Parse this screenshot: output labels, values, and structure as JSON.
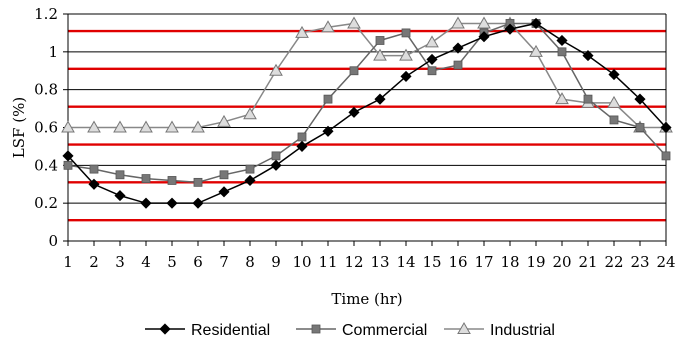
{
  "chart_data": {
    "type": "line",
    "xlabel": "Time (hr)",
    "ylabel": "LSF (%)",
    "x": [
      1,
      2,
      3,
      4,
      5,
      6,
      7,
      8,
      9,
      10,
      11,
      12,
      13,
      14,
      15,
      16,
      17,
      18,
      19,
      20,
      21,
      22,
      23,
      24
    ],
    "x_ticks": [
      "1",
      "2",
      "3",
      "4",
      "5",
      "6",
      "7",
      "8",
      "9",
      "10",
      "11",
      "12",
      "13",
      "14",
      "15",
      "16",
      "17",
      "18",
      "19",
      "20",
      "21",
      "22",
      "23",
      "24"
    ],
    "xlim": [
      1,
      24
    ],
    "ylim": [
      0,
      1.2
    ],
    "y_ticks": [
      "0",
      "0.2",
      "0.4",
      "0.6",
      "0.8",
      "1",
      "1.2"
    ],
    "y_tick_values": [
      0,
      0.2,
      0.4,
      0.6,
      0.8,
      1.0,
      1.2
    ],
    "grid": true,
    "red_lines": [
      0.11,
      0.31,
      0.51,
      0.71,
      0.91,
      1.11
    ],
    "legend_position": "bottom",
    "series": [
      {
        "name": "Residential",
        "marker": "diamond",
        "color": "#000000",
        "values": [
          0.45,
          0.3,
          0.24,
          0.2,
          0.2,
          0.2,
          0.26,
          0.32,
          0.4,
          0.5,
          0.58,
          0.68,
          0.75,
          0.87,
          0.96,
          1.02,
          1.08,
          1.12,
          1.15,
          1.06,
          0.98,
          0.88,
          0.75,
          0.6
        ]
      },
      {
        "name": "Commercial",
        "marker": "square",
        "color": "#666666",
        "values": [
          0.4,
          0.38,
          0.35,
          0.33,
          0.32,
          0.31,
          0.35,
          0.38,
          0.45,
          0.55,
          0.75,
          0.9,
          1.06,
          1.1,
          0.9,
          0.93,
          1.1,
          1.15,
          1.15,
          1.0,
          0.75,
          0.64,
          0.6,
          0.45
        ]
      },
      {
        "name": "Industrial",
        "marker": "triangle",
        "color": "#888888",
        "values": [
          0.6,
          0.6,
          0.6,
          0.6,
          0.6,
          0.6,
          0.63,
          0.67,
          0.9,
          1.1,
          1.13,
          1.15,
          0.98,
          0.98,
          1.05,
          1.15,
          1.15,
          1.15,
          1.0,
          0.75,
          0.73,
          0.73,
          0.6,
          0.6
        ]
      }
    ],
    "colors": {
      "red_line": "#e00000",
      "grid": "#000000",
      "residential_fill": "#000000",
      "commercial_fill": "#777777",
      "industrial_fill": "#dddddd"
    }
  }
}
